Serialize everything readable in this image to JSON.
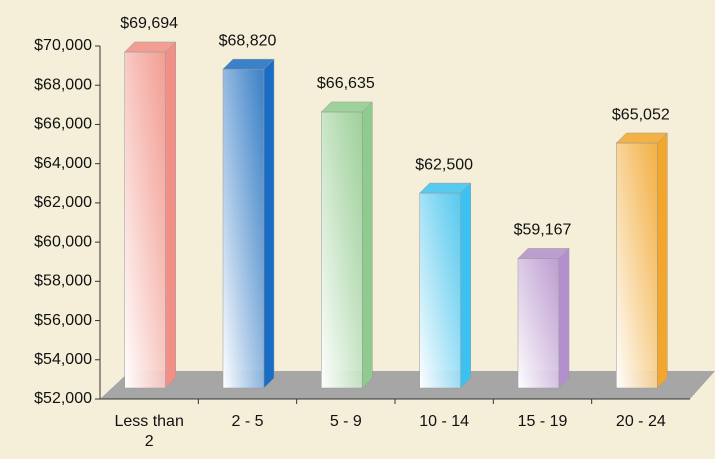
{
  "chart_data": {
    "type": "bar3d",
    "categories": [
      "Less than 2",
      "2 - 5",
      "5 - 9",
      "10 - 14",
      "15 - 19",
      "20 - 24"
    ],
    "values": [
      69694,
      68820,
      66635,
      62500,
      59167,
      65052
    ],
    "value_labels": [
      "$69,694",
      "$68,820",
      "$66,635",
      "$62,500",
      "$59,167",
      "$65,052"
    ],
    "colors": [
      "#f28f86",
      "#1a6dc4",
      "#8fcb8f",
      "#3cc2f2",
      "#b48fcf",
      "#f2a62c"
    ],
    "ylim": [
      52000,
      70000
    ],
    "yticks": [
      {
        "value": 52000,
        "label": "$52,000"
      },
      {
        "value": 54000,
        "label": "$54,000"
      },
      {
        "value": 56000,
        "label": "$56,000"
      },
      {
        "value": 58000,
        "label": "$58,000"
      },
      {
        "value": 60000,
        "label": "$60,000"
      },
      {
        "value": 62000,
        "label": "$62,000"
      },
      {
        "value": 64000,
        "label": "$64,000"
      },
      {
        "value": 66000,
        "label": "$66,000"
      },
      {
        "value": 68000,
        "label": "$68,000"
      },
      {
        "value": 70000,
        "label": "$70,000"
      }
    ]
  }
}
